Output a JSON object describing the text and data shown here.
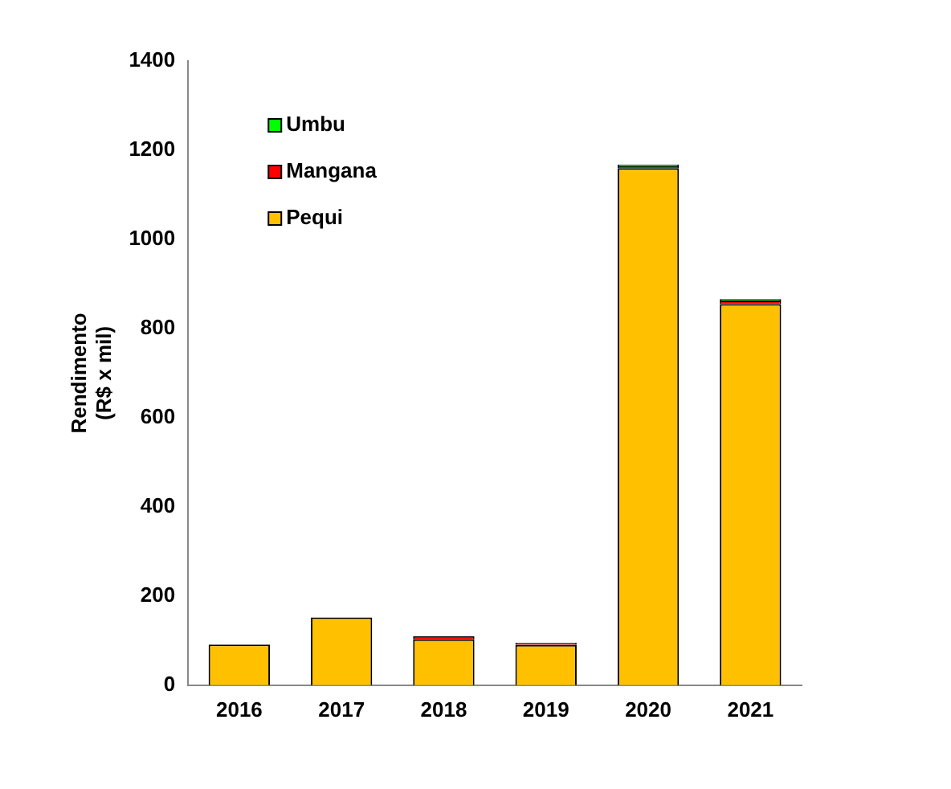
{
  "chart_data": {
    "type": "bar",
    "ylabel": "Rendimento\n(R$ x mil)",
    "categories": [
      "2016",
      "2017",
      "2018",
      "2019",
      "2020",
      "2021"
    ],
    "stacked": true,
    "series": [
      {
        "name": "Pequi",
        "color": "#ffc000",
        "values": [
          91,
          152,
          103,
          90,
          1160,
          855
        ]
      },
      {
        "name": "Mangana",
        "color": "#ff0000",
        "values": [
          0,
          null,
          7,
          3,
          4,
          8
        ]
      },
      {
        "name": "Umbu",
        "color": "#00ff00",
        "values": [
          0,
          null,
          0,
          2,
          4,
          3
        ]
      }
    ],
    "ylim": [
      0,
      1400
    ],
    "yticks": [
      0,
      200,
      400,
      600,
      800,
      1000,
      1200,
      1400
    ],
    "grid": false,
    "legend": "top left"
  }
}
